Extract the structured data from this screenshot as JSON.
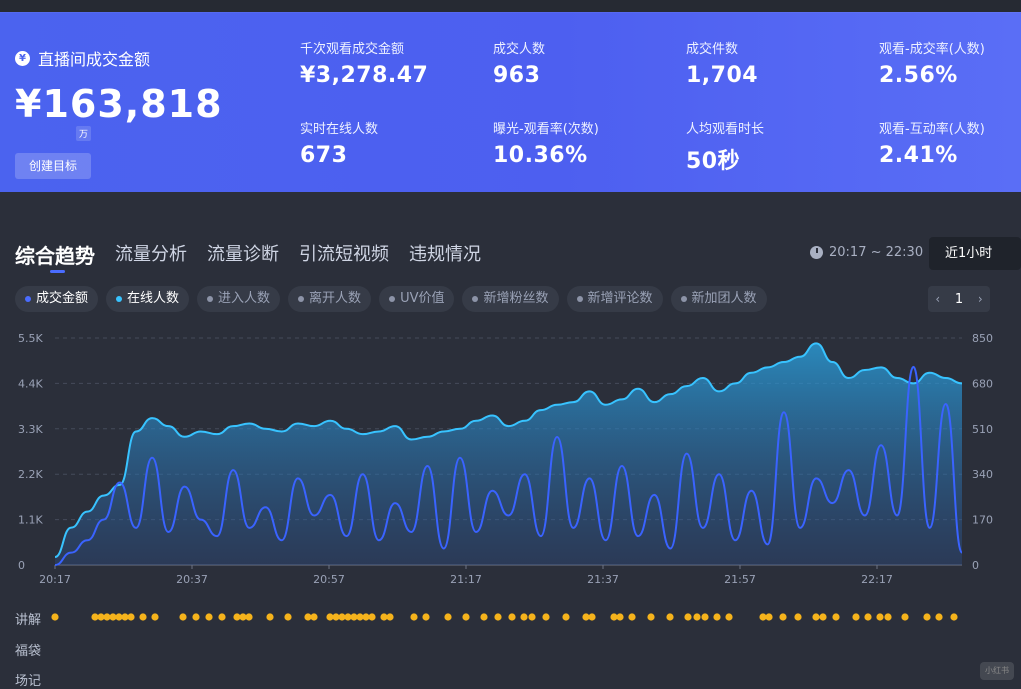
{
  "hero": {
    "title": "直播间成交金额",
    "amount": "¥163,818",
    "unit": "万",
    "create_button": "创建目标",
    "metrics": [
      {
        "label": "千次观看成交金额",
        "value": "¥3,278.47"
      },
      {
        "label": "成交人数",
        "value": "963"
      },
      {
        "label": "成交件数",
        "value": "1,704"
      },
      {
        "label": "观看-成交率(人数)",
        "value": "2.56%"
      },
      {
        "label": "实时在线人数",
        "value": "673"
      },
      {
        "label": "曝光-观看率(次数)",
        "value": "10.36%"
      },
      {
        "label": "人均观看时长",
        "value": "50秒"
      },
      {
        "label": "观看-互动率(人数)",
        "value": "2.41%"
      }
    ]
  },
  "tabs": [
    "综合趋势",
    "流量分析",
    "流量诊断",
    "引流短视频",
    "违规情况"
  ],
  "time": {
    "range": "20:17 ~ 22:30",
    "select": "近1小时"
  },
  "chips": [
    {
      "label": "成交金额",
      "color": "#4a6cff",
      "on": true
    },
    {
      "label": "在线人数",
      "color": "#38c3ff",
      "on": true
    },
    {
      "label": "进入人数",
      "color": "#8d94a8",
      "on": false
    },
    {
      "label": "离开人数",
      "color": "#8d94a8",
      "on": false
    },
    {
      "label": "UV价值",
      "color": "#8d94a8",
      "on": false
    },
    {
      "label": "新增粉丝数",
      "color": "#8d94a8",
      "on": false
    },
    {
      "label": "新增评论数",
      "color": "#8d94a8",
      "on": false
    },
    {
      "label": "新加团人数",
      "color": "#8d94a8",
      "on": false
    }
  ],
  "pager": {
    "page": "1",
    "prev": "‹",
    "next": "›"
  },
  "chart_data": {
    "type": "line",
    "x_ticks": [
      "20:17",
      "20:37",
      "20:57",
      "21:17",
      "21:37",
      "21:57",
      "22:17"
    ],
    "y_left_ticks": [
      "5.5K",
      "4.4K",
      "3.3K",
      "2.2K",
      "1.1K",
      "0"
    ],
    "y_right_ticks": [
      "850",
      "680",
      "510",
      "340",
      "170",
      "0"
    ],
    "ylim_left": [
      0,
      5500
    ],
    "ylim_right": [
      0,
      850
    ],
    "grid": true,
    "series": [
      {
        "name": "在线人数",
        "axis": "right",
        "color": "#38c3ff",
        "values": [
          30,
          140,
          200,
          260,
          300,
          500,
          550,
          520,
          480,
          500,
          490,
          520,
          530,
          510,
          500,
          530,
          520,
          540,
          510,
          490,
          500,
          520,
          470,
          480,
          500,
          510,
          540,
          560,
          520,
          540,
          580,
          600,
          610,
          650,
          600,
          620,
          660,
          610,
          640,
          670,
          700,
          650,
          680,
          720,
          740,
          760,
          780,
          830,
          760,
          700,
          730,
          740,
          700,
          680,
          720,
          700,
          680
        ]
      },
      {
        "name": "成交金额",
        "axis": "left",
        "color": "#3a63ff",
        "values": [
          0,
          300,
          600,
          1100,
          2000,
          900,
          2600,
          800,
          1900,
          1100,
          700,
          2300,
          900,
          1400,
          600,
          2100,
          1200,
          1700,
          700,
          2200,
          600,
          1500,
          800,
          2400,
          400,
          2600,
          800,
          1800,
          1200,
          2200,
          700,
          3100,
          900,
          2100,
          600,
          2400,
          700,
          1700,
          400,
          2700,
          900,
          2200,
          600,
          1800,
          500,
          3700,
          900,
          2100,
          1500,
          2300,
          1200,
          2900,
          1200,
          4800,
          900,
          3900,
          300
        ]
      }
    ]
  },
  "rows": [
    "讲解",
    "福袋",
    "场记"
  ],
  "explain_dots": [
    55,
    95,
    101,
    107,
    113,
    119,
    125,
    131,
    143,
    155,
    183,
    196,
    209,
    222,
    237,
    243,
    249,
    270,
    288,
    308,
    314,
    330,
    336,
    342,
    348,
    354,
    360,
    366,
    372,
    384,
    390,
    414,
    426,
    448,
    466,
    484,
    498,
    512,
    524,
    532,
    546,
    566,
    586,
    592,
    614,
    620,
    632,
    651,
    670,
    688,
    697,
    705,
    717,
    729,
    763,
    769,
    783,
    798,
    816,
    823,
    836,
    856,
    868,
    880,
    888,
    905,
    927,
    939,
    954
  ],
  "watermark": "小红书"
}
